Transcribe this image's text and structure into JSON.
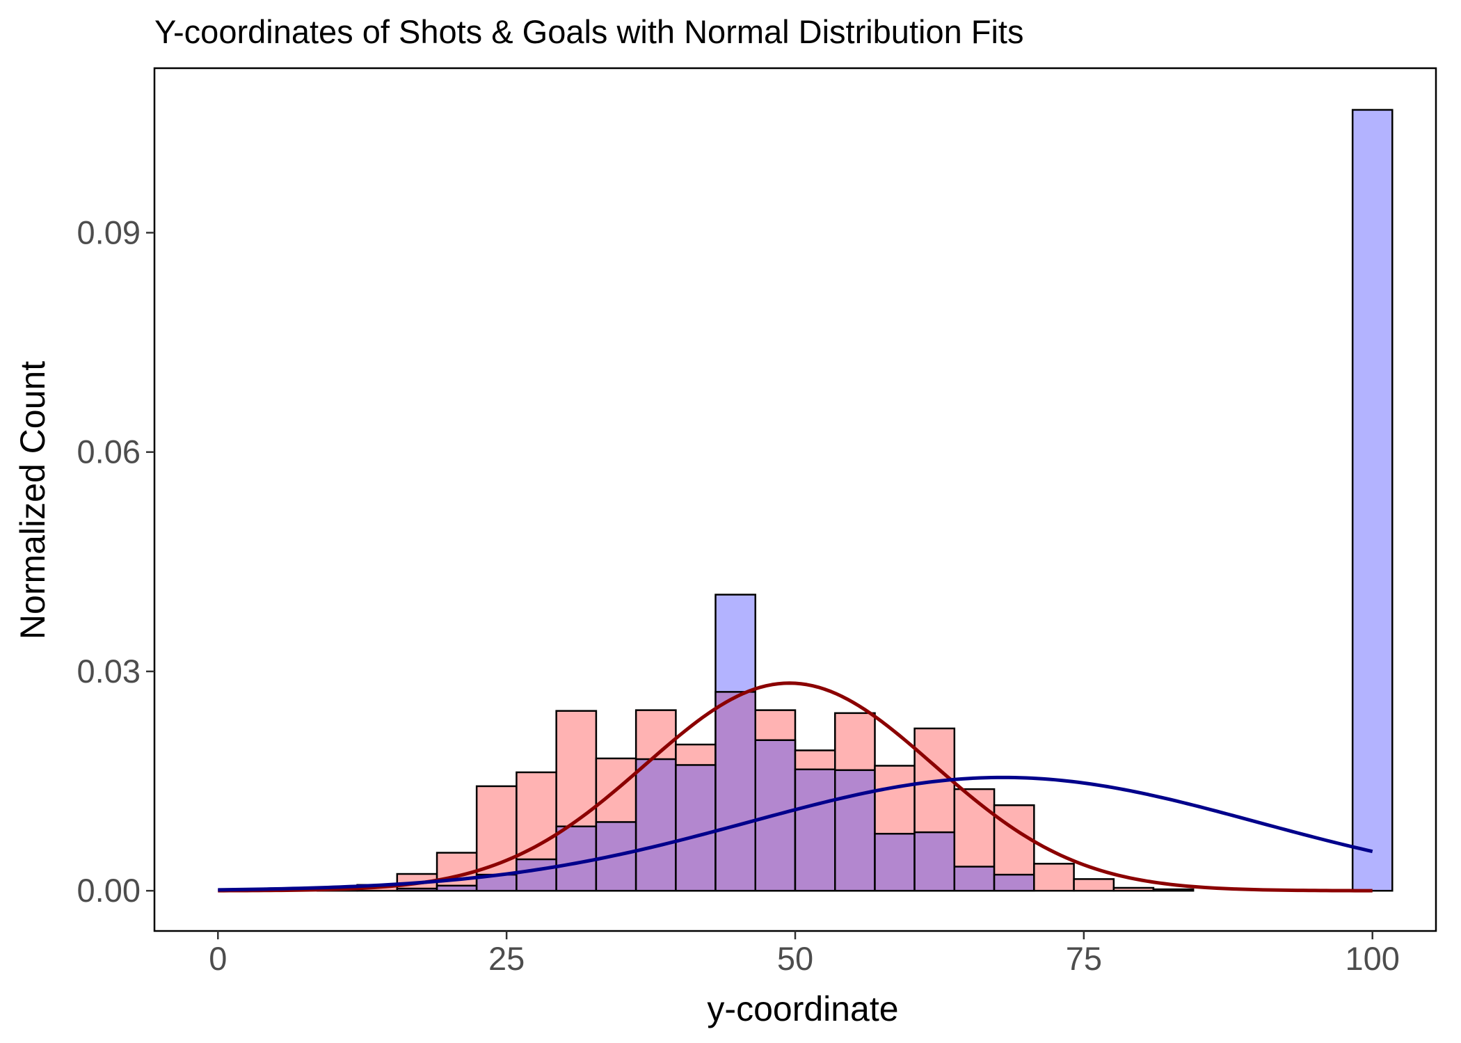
{
  "chart_data": {
    "type": "bar",
    "title": "Y-coordinates of Shots & Goals with Normal Distribution Fits",
    "xlabel": "y-coordinate",
    "ylabel": "Normalized Count",
    "xlim": [
      -5.5,
      105.5
    ],
    "ylim": [
      -0.0055,
      0.1125
    ],
    "x_ticks": [
      0,
      25,
      50,
      75,
      100
    ],
    "x_tick_labels": [
      "0",
      "25",
      "50",
      "75",
      "100"
    ],
    "y_ticks": [
      0.0,
      0.03,
      0.06,
      0.09
    ],
    "y_tick_labels": [
      "0.00",
      "0.03",
      "0.06",
      "0.09"
    ],
    "bin_edges": [
      -1.72,
      1.72,
      5.17,
      8.62,
      12.07,
      15.52,
      18.97,
      22.41,
      25.86,
      29.31,
      32.76,
      36.21,
      39.66,
      43.1,
      46.55,
      50.0,
      53.45,
      56.9,
      60.34,
      63.79,
      67.24,
      70.69,
      74.14,
      77.59,
      81.03,
      84.48,
      87.93,
      91.38,
      94.83,
      98.28,
      101.72
    ],
    "series": [
      {
        "fill": "#ffb3b3",
        "values": [
          0.0,
          0.0,
          0.0,
          0.0003,
          0.0008,
          0.0023,
          0.0052,
          0.0143,
          0.0162,
          0.0246,
          0.0181,
          0.0247,
          0.02,
          0.0272,
          0.0247,
          0.0192,
          0.0243,
          0.0171,
          0.0222,
          0.0139,
          0.0117,
          0.0037,
          0.0016,
          0.0004,
          0.0002,
          0.0,
          0.0,
          0.0,
          0.0,
          0.0
        ]
      },
      {
        "fill": "#b3b3ff",
        "values": [
          0.0,
          0.0,
          0.0,
          0.0,
          0.0,
          0.0003,
          0.0007,
          0.0022,
          0.0043,
          0.0088,
          0.0094,
          0.018,
          0.0172,
          0.0405,
          0.0206,
          0.0166,
          0.0165,
          0.0078,
          0.008,
          0.0033,
          0.0022,
          0.0,
          0.0,
          0.0,
          0.0,
          0.0,
          0.0,
          0.0,
          0.0,
          0.1068
        ]
      }
    ],
    "overlap_fill": "#b387cf",
    "fits": [
      {
        "color": "#8b0000",
        "mean": 49.5,
        "sd": 12.5,
        "peak": 0.0284,
        "x_range": [
          0,
          100
        ]
      },
      {
        "color": "#00008b",
        "mean": 68.0,
        "sd": 22.0,
        "peak": 0.0155,
        "x_range": [
          0,
          100
        ]
      }
    ]
  }
}
